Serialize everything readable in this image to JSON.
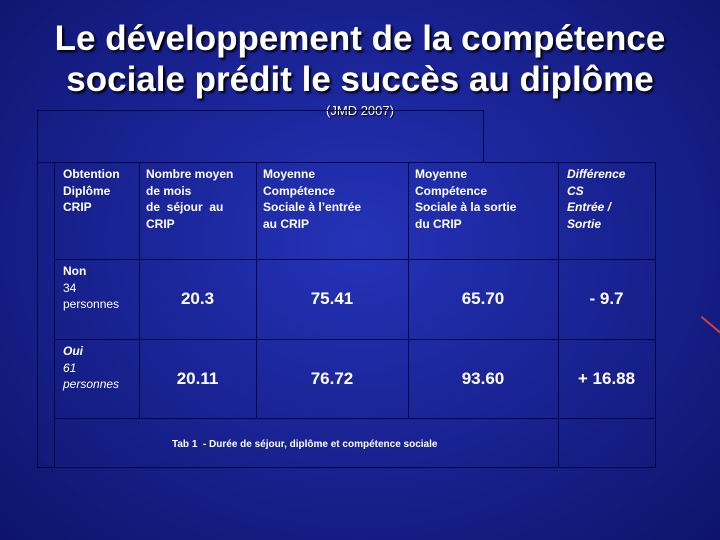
{
  "title_line1": "Le développement de la compétence",
  "title_line2": "sociale prédit le succès au diplôme",
  "subtitle": "(JMD 2007)",
  "table": {
    "headers": {
      "col1": [
        "Obtention",
        "Diplôme",
        "CRIP"
      ],
      "col2": [
        "Nombre moyen",
        "de mois",
        "de  séjour  au",
        "CRIP"
      ],
      "col3": [
        "Moyenne",
        "Compétence",
        "Sociale à l’entrée",
        "au CRIP"
      ],
      "col4": [
        "Moyenne",
        "Compétence",
        "Sociale à la sortie",
        "du CRIP"
      ],
      "col5": [
        "Différence",
        "CS",
        "Entrée /",
        "Sortie"
      ]
    },
    "rows": [
      {
        "label": "Non",
        "count": "34",
        "unit": "personnes",
        "months": "20.3",
        "cs_entry": "75.41",
        "cs_exit": "65.70",
        "diff": "- 9.7"
      },
      {
        "label": "Oui",
        "count": "61",
        "unit": "personnes",
        "months": "20.11",
        "cs_entry": "76.72",
        "cs_exit": "93.60",
        "diff": "+ 16.88"
      }
    ],
    "caption": "Tab 1  - Durée de séjour, diplôme et compétence sociale"
  }
}
